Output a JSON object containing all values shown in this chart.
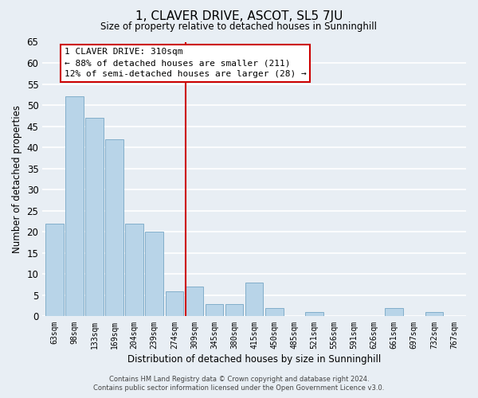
{
  "title": "1, CLAVER DRIVE, ASCOT, SL5 7JU",
  "subtitle": "Size of property relative to detached houses in Sunninghill",
  "xlabel": "Distribution of detached houses by size in Sunninghill",
  "ylabel": "Number of detached properties",
  "bar_labels": [
    "63sqm",
    "98sqm",
    "133sqm",
    "169sqm",
    "204sqm",
    "239sqm",
    "274sqm",
    "309sqm",
    "345sqm",
    "380sqm",
    "415sqm",
    "450sqm",
    "485sqm",
    "521sqm",
    "556sqm",
    "591sqm",
    "626sqm",
    "661sqm",
    "697sqm",
    "732sqm",
    "767sqm"
  ],
  "bar_values": [
    22,
    52,
    47,
    42,
    22,
    20,
    6,
    7,
    3,
    3,
    8,
    2,
    0,
    1,
    0,
    0,
    0,
    2,
    0,
    1,
    0
  ],
  "bar_color": "#b8d4e8",
  "bar_edge_color": "#82aeca",
  "highlight_line_index": 7,
  "highlight_line_color": "#cc0000",
  "ylim": [
    0,
    65
  ],
  "yticks": [
    0,
    5,
    10,
    15,
    20,
    25,
    30,
    35,
    40,
    45,
    50,
    55,
    60,
    65
  ],
  "annotation_title": "1 CLAVER DRIVE: 310sqm",
  "annotation_line1": "← 88% of detached houses are smaller (211)",
  "annotation_line2": "12% of semi-detached houses are larger (28) →",
  "annotation_box_facecolor": "#ffffff",
  "annotation_box_edgecolor": "#cc0000",
  "background_color": "#e8eef4",
  "plot_bg_color": "#e8eef4",
  "grid_color": "#ffffff",
  "footer1": "Contains HM Land Registry data © Crown copyright and database right 2024.",
  "footer2": "Contains public sector information licensed under the Open Government Licence v3.0."
}
